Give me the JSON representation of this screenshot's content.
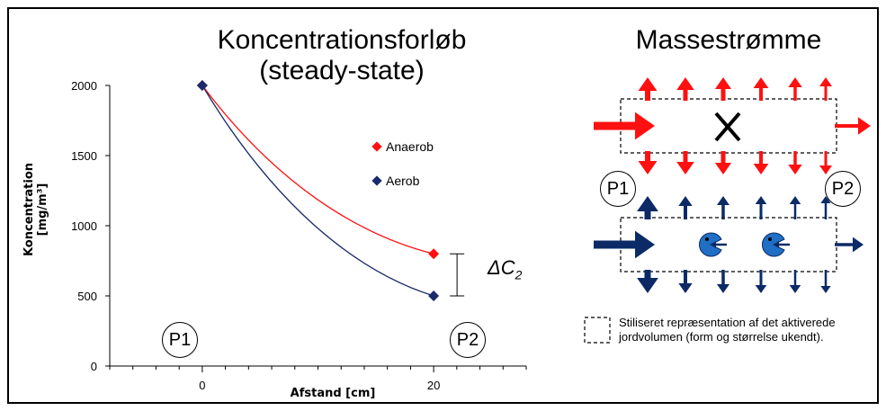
{
  "left_panel": {
    "title_line1": "Koncentrationsforløb",
    "title_line2": "(steady-state)",
    "point_labels": [
      "P1",
      "P2"
    ],
    "delta_label": "ΔC",
    "delta_subscript": "2"
  },
  "right_panel": {
    "title": "Massestrømme",
    "point_labels": [
      "P1",
      "P2"
    ],
    "note": "Stiliseret repræsentation af det aktiverede jordvolumen (form og størrelse ukendt).",
    "colors": {
      "red": "#ff1010",
      "navy": "#0b2a66",
      "bacteria": "#1f6fc4"
    }
  },
  "chart_data": {
    "type": "line",
    "xlabel": "Afstand [cm]",
    "ylabel": "Koncentration [mg/m³]",
    "ylim": [
      0,
      2000
    ],
    "xlim": [
      -8,
      28
    ],
    "yticks": [
      0,
      500,
      1000,
      1500,
      2000
    ],
    "xticks": [
      0,
      20
    ],
    "legend_position": "right",
    "series": [
      {
        "name": "Anaerob",
        "color": "#ff1010",
        "marker": "diamond",
        "x": [
          0,
          20
        ],
        "y": [
          2000,
          800
        ]
      },
      {
        "name": "Aerob",
        "color": "#1b2a6b",
        "marker": "diamond",
        "x": [
          0,
          20
        ],
        "y": [
          2000,
          500
        ]
      }
    ]
  }
}
